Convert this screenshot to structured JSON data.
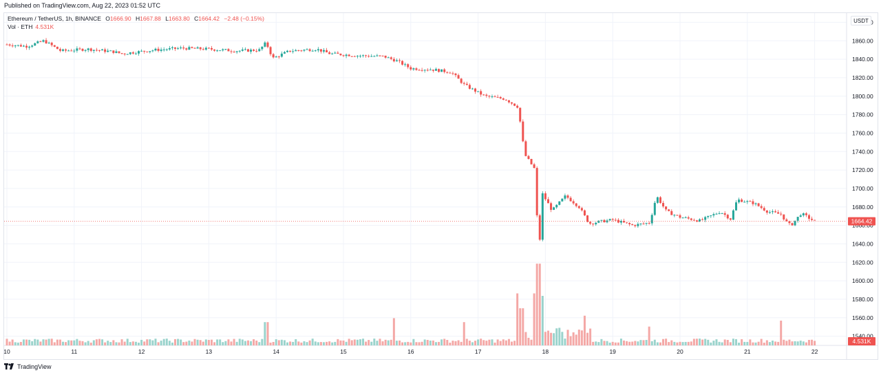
{
  "header": {
    "published": "Published on TradingView.com, Aug 22, 2023 01:52 UTC"
  },
  "legend": {
    "symbol": "Ethereum / TetherUS, 1h, BINANCE",
    "open_label": "O",
    "open": "1666.90",
    "high_label": "H",
    "high": "1667.88",
    "low_label": "L",
    "low": "1663.80",
    "close_label": "C",
    "close": "1664.42",
    "change": "−2.48 (−0.15%)",
    "vol_label": "Vol · ETH",
    "vol_value": "4.531K"
  },
  "currency_button": "USDT",
  "last_price_tag": "1664.42",
  "last_volume_tag": "4.531K",
  "footer": {
    "brand": "TradingView"
  },
  "colors": {
    "up": "#26a69a",
    "down": "#ef5350",
    "up_vol": "#9ad3cc",
    "down_vol": "#f4a8a6",
    "grid": "#f0f3fa"
  },
  "chart_data": {
    "type": "candlestick",
    "price_axis": {
      "ticks": [
        "1880.00",
        "1860.00",
        "1840.00",
        "1820.00",
        "1800.00",
        "1780.00",
        "1760.00",
        "1740.00",
        "1720.00",
        "1700.00",
        "1680.00",
        "1660.00",
        "1640.00",
        "1620.00",
        "1600.00",
        "1580.00",
        "1560.00",
        "1540.00"
      ],
      "ylim": [
        1530,
        1890
      ]
    },
    "time_axis": {
      "ticks": [
        "10",
        "11",
        "12",
        "13",
        "14",
        "15",
        "16",
        "17",
        "18",
        "19",
        "20",
        "21",
        "22"
      ]
    },
    "price_path": [
      {
        "x": 0,
        "y": 1856
      },
      {
        "x": 0.3,
        "y": 1854
      },
      {
        "x": 0.55,
        "y": 1860
      },
      {
        "x": 0.8,
        "y": 1849
      },
      {
        "x": 1.2,
        "y": 1851
      },
      {
        "x": 1.6,
        "y": 1848
      },
      {
        "x": 1.7,
        "y": 1846
      },
      {
        "x": 2.2,
        "y": 1850
      },
      {
        "x": 2.6,
        "y": 1852
      },
      {
        "x": 3.0,
        "y": 1851
      },
      {
        "x": 3.4,
        "y": 1849
      },
      {
        "x": 3.75,
        "y": 1850
      },
      {
        "x": 3.85,
        "y": 1858
      },
      {
        "x": 3.95,
        "y": 1841
      },
      {
        "x": 4.2,
        "y": 1849
      },
      {
        "x": 4.6,
        "y": 1851
      },
      {
        "x": 4.8,
        "y": 1846
      },
      {
        "x": 5.2,
        "y": 1844
      },
      {
        "x": 5.6,
        "y": 1843
      },
      {
        "x": 5.8,
        "y": 1838
      },
      {
        "x": 6.0,
        "y": 1830
      },
      {
        "x": 6.3,
        "y": 1829
      },
      {
        "x": 6.6,
        "y": 1826
      },
      {
        "x": 6.8,
        "y": 1812
      },
      {
        "x": 7.1,
        "y": 1800
      },
      {
        "x": 7.4,
        "y": 1797
      },
      {
        "x": 7.6,
        "y": 1788
      },
      {
        "x": 7.65,
        "y": 1757
      },
      {
        "x": 7.7,
        "y": 1736
      },
      {
        "x": 7.85,
        "y": 1720
      },
      {
        "x": 7.9,
        "y": 1620
      },
      {
        "x": 7.95,
        "y": 1695
      },
      {
        "x": 8.1,
        "y": 1676
      },
      {
        "x": 8.3,
        "y": 1692
      },
      {
        "x": 8.5,
        "y": 1680
      },
      {
        "x": 8.65,
        "y": 1662
      },
      {
        "x": 8.8,
        "y": 1664
      },
      {
        "x": 9.0,
        "y": 1666
      },
      {
        "x": 9.3,
        "y": 1660
      },
      {
        "x": 9.55,
        "y": 1663
      },
      {
        "x": 9.65,
        "y": 1692
      },
      {
        "x": 9.8,
        "y": 1675
      },
      {
        "x": 10.0,
        "y": 1669
      },
      {
        "x": 10.3,
        "y": 1665
      },
      {
        "x": 10.6,
        "y": 1675
      },
      {
        "x": 10.75,
        "y": 1667
      },
      {
        "x": 10.85,
        "y": 1688
      },
      {
        "x": 11.1,
        "y": 1684
      },
      {
        "x": 11.3,
        "y": 1675
      },
      {
        "x": 11.5,
        "y": 1672
      },
      {
        "x": 11.6,
        "y": 1662
      },
      {
        "x": 11.65,
        "y": 1660
      },
      {
        "x": 11.8,
        "y": 1673
      },
      {
        "x": 12.0,
        "y": 1664.42
      }
    ],
    "volume_spikes": [
      {
        "x": 3.85,
        "v": 47
      },
      {
        "x": 5.75,
        "v": 55
      },
      {
        "x": 6.8,
        "v": 47
      },
      {
        "x": 7.6,
        "v": 105
      },
      {
        "x": 7.65,
        "v": 75
      },
      {
        "x": 7.85,
        "v": 105
      },
      {
        "x": 7.9,
        "v": 165
      },
      {
        "x": 7.95,
        "v": 100
      },
      {
        "x": 8.6,
        "v": 60
      },
      {
        "x": 9.55,
        "v": 38
      },
      {
        "x": 11.5,
        "v": 50
      }
    ]
  }
}
